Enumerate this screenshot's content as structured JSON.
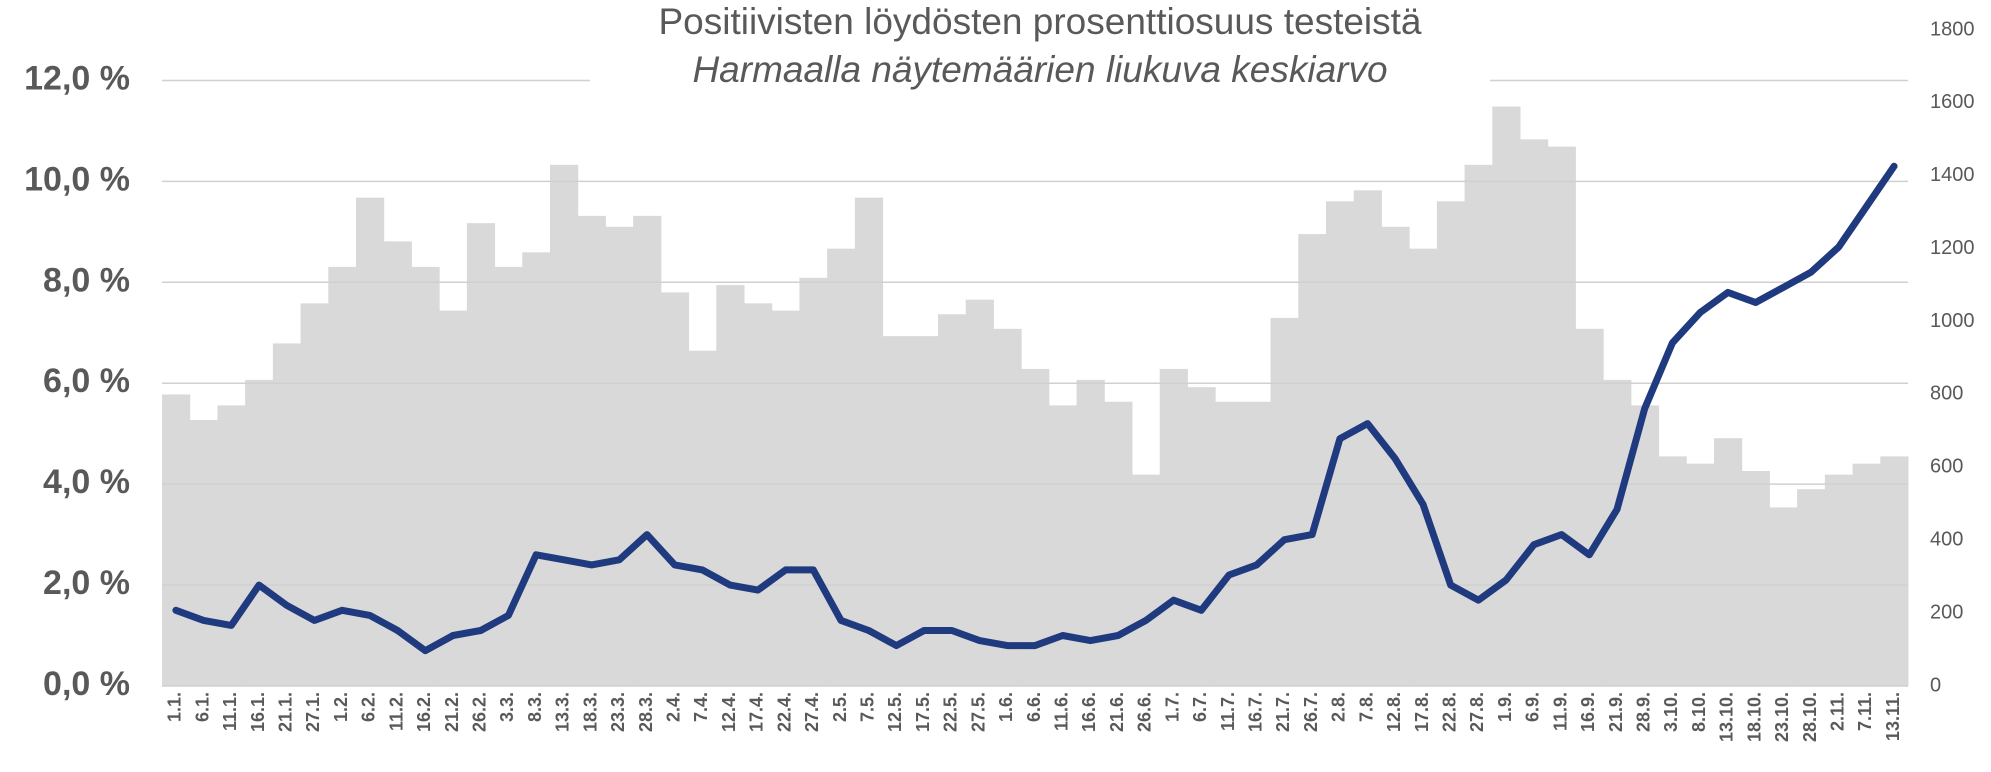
{
  "chart_data": {
    "type": "bar-line",
    "title": "Positiivisten löydösten prosenttiosuus testeistä",
    "subtitle": "Harmaalla näytemäärien liukuva keskiarvo",
    "categories": [
      "1.1.",
      "6.1.",
      "11.1.",
      "16.1.",
      "21.1.",
      "27.1.",
      "1.2.",
      "6.2.",
      "11.2.",
      "16.2.",
      "21.2.",
      "26.2.",
      "3.3.",
      "8.3.",
      "13.3.",
      "18.3.",
      "23.3.",
      "28.3.",
      "2.4.",
      "7.4.",
      "12.4.",
      "17.4.",
      "22.4.",
      "27.4.",
      "2.5.",
      "7.5.",
      "12.5.",
      "17.5.",
      "22.5.",
      "27.5.",
      "1.6.",
      "6.6.",
      "11.6.",
      "16.6.",
      "21.6.",
      "26.6.",
      "1.7.",
      "6.7.",
      "11.7.",
      "16.7.",
      "21.7.",
      "26.7.",
      "2.8.",
      "7.8.",
      "12.8.",
      "17.8.",
      "22.8.",
      "27.8.",
      "1.9.",
      "6.9.",
      "11.9.",
      "16.9.",
      "21.9.",
      "28.9.",
      "3.10.",
      "8.10.",
      "13.10.",
      "18.10.",
      "23.10.",
      "28.10.",
      "2.11.",
      "7.11.",
      "13.11."
    ],
    "series": [
      {
        "kind": "bar",
        "axis": "y2",
        "color": "#d9d9d9",
        "values": [
          800,
          730,
          770,
          840,
          940,
          1050,
          1150,
          1340,
          1220,
          1150,
          1030,
          1270,
          1150,
          1190,
          1430,
          1290,
          1260,
          1290,
          1080,
          920,
          1100,
          1050,
          1030,
          1120,
          1200,
          1340,
          960,
          960,
          1020,
          1060,
          980,
          870,
          770,
          840,
          780,
          580,
          870,
          820,
          780,
          780,
          1010,
          1240,
          1330,
          1360,
          1260,
          1200,
          1330,
          1430,
          1590,
          1500,
          1480,
          980,
          840,
          770,
          630,
          610,
          680,
          590,
          490,
          540,
          580,
          610,
          630
        ]
      },
      {
        "kind": "line",
        "axis": "y",
        "color": "#1f3a7e",
        "values": [
          1.5,
          1.3,
          1.2,
          2.0,
          1.6,
          1.3,
          1.5,
          1.4,
          1.1,
          0.7,
          1.0,
          1.1,
          1.4,
          2.6,
          2.5,
          2.4,
          2.5,
          3.0,
          2.4,
          2.3,
          2.0,
          1.9,
          2.3,
          2.3,
          1.3,
          1.1,
          0.8,
          1.1,
          1.1,
          0.9,
          0.8,
          0.8,
          1.0,
          0.9,
          1.0,
          1.3,
          1.7,
          1.5,
          2.2,
          2.4,
          2.9,
          3.0,
          4.9,
          5.2,
          4.5,
          3.6,
          2.0,
          1.7,
          2.1,
          2.8,
          3.0,
          2.6,
          3.5,
          5.5,
          6.8,
          7.4,
          7.8,
          7.6,
          7.9,
          8.2,
          8.7,
          9.5,
          10.3
        ]
      }
    ],
    "ylim": [
      0,
      13
    ],
    "yticks": [
      {
        "value": 0,
        "label": "0,0 %"
      },
      {
        "value": 2,
        "label": "2,0 %"
      },
      {
        "value": 4,
        "label": "4,0 %"
      },
      {
        "value": 6,
        "label": "6,0 %"
      },
      {
        "value": 8,
        "label": "8,0 %"
      },
      {
        "value": 10,
        "label": "10,0 %"
      },
      {
        "value": 12,
        "label": "12,0 %"
      }
    ],
    "y2lim": [
      0,
      1800
    ],
    "y2ticks": [
      0,
      200,
      400,
      600,
      800,
      1000,
      1200,
      1400,
      1600,
      1800
    ],
    "grid": true
  }
}
